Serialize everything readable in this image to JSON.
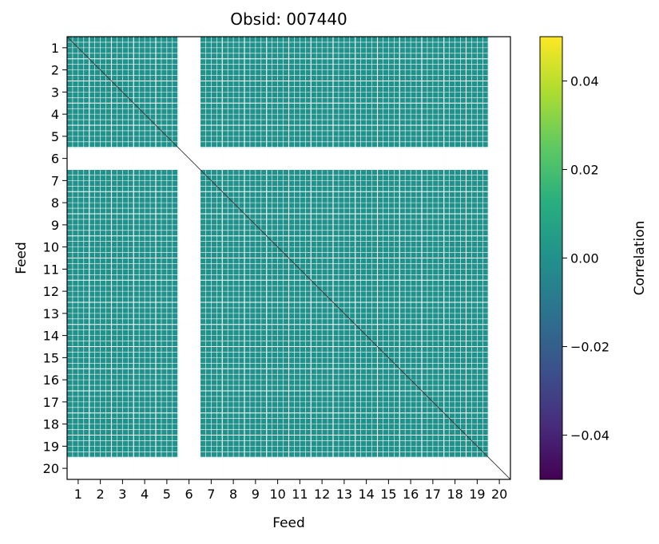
{
  "chart_data": {
    "type": "heatmap",
    "title": "Obsid: 007440",
    "xlabel": "Feed",
    "ylabel": "Feed",
    "x_ticks": [
      "1",
      "2",
      "3",
      "4",
      "5",
      "6",
      "7",
      "8",
      "9",
      "10",
      "11",
      "12",
      "13",
      "14",
      "15",
      "16",
      "17",
      "18",
      "19",
      "20"
    ],
    "y_ticks": [
      "1",
      "2",
      "3",
      "4",
      "5",
      "6",
      "7",
      "8",
      "9",
      "10",
      "11",
      "12",
      "13",
      "14",
      "15",
      "16",
      "17",
      "18",
      "19",
      "20"
    ],
    "feeds": 20,
    "subchannels": 4,
    "missing_feeds": [
      6,
      20
    ],
    "fill_value": 0.0,
    "fill_color": "#21918c",
    "colorbar": {
      "label": "Correlation",
      "range": [
        -0.05,
        0.05
      ],
      "tick_values": [
        -0.04,
        -0.02,
        0.0,
        0.02,
        0.04
      ],
      "tick_labels": [
        "−0.04",
        "−0.02",
        "0.00",
        "0.02",
        "0.04"
      ],
      "colormap": "viridis"
    }
  }
}
